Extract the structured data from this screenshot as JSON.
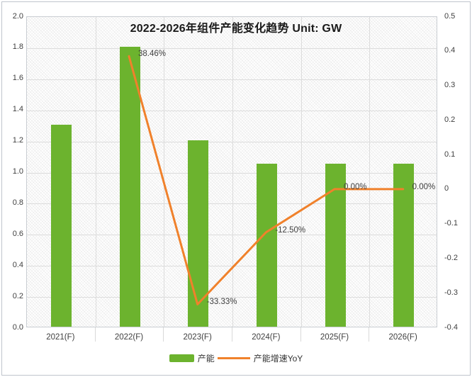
{
  "title": "2022-2026年组件产能变化趋势 Unit: GW",
  "colors": {
    "bar": "#6CB32E",
    "line": "#F0812B",
    "grid": "#DCDCDC",
    "plot_border": "#C9CDD2",
    "axis_text": "#404040",
    "title_text": "#1A1A1A",
    "outer_border": "#BFC5CC"
  },
  "legend": {
    "items": [
      {
        "label": "产能",
        "marker": "bar"
      },
      {
        "label": "产能增速YoY",
        "marker": "line"
      }
    ]
  },
  "chart_data": {
    "type": "bar+line combo",
    "title": "2022-2026年组件产能变化趋势 Unit: GW",
    "categories": [
      "2021(F)",
      "2022(F)",
      "2023(F)",
      "2024(F)",
      "2025(F)",
      "2026(F)"
    ],
    "series": [
      {
        "name": "产能",
        "type": "bar",
        "axis": "left",
        "values": [
          1.3,
          1.8,
          1.2,
          1.05,
          1.05,
          1.05
        ]
      },
      {
        "name": "产能增速YoY",
        "type": "line",
        "axis": "right",
        "values": [
          null,
          0.3846,
          -0.3333,
          -0.125,
          0,
          0
        ],
        "point_labels": [
          null,
          "38.46%",
          "-33.33%",
          "-12.50%",
          "0.00%",
          "0.00%"
        ]
      }
    ],
    "left_axis": {
      "min": 0.0,
      "max": 2.0,
      "step": 0.2,
      "ticks": [
        "2.0",
        "1.8",
        "1.6",
        "1.4",
        "1.2",
        "1.0",
        "0.8",
        "0.6",
        "0.4",
        "0.2",
        "0.0"
      ]
    },
    "right_axis": {
      "min": -0.4,
      "max": 0.5,
      "step": 0.1,
      "ticks": [
        "0.5",
        "0.4",
        "0.3",
        "0.2",
        "0.1",
        "0",
        "-0.1",
        "-0.2",
        "-0.3",
        "-0.4"
      ]
    },
    "grid": true,
    "legend_position": "bottom"
  }
}
